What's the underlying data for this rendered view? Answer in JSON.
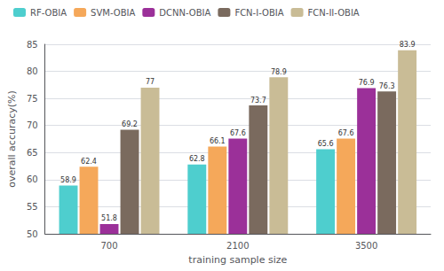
{
  "chart_data": {
    "type": "bar",
    "categories": [
      "700",
      "2100",
      "3500"
    ],
    "series": [
      {
        "name": "RF-OBIA",
        "color": "#4ECECE",
        "values": [
          58.9,
          62.8,
          65.6
        ]
      },
      {
        "name": "SVM-OBIA",
        "color": "#F5A85A",
        "values": [
          62.4,
          66.1,
          67.6
        ]
      },
      {
        "name": "DCNN-OBIA",
        "color": "#9B3099",
        "values": [
          51.8,
          67.6,
          76.9
        ]
      },
      {
        "name": "FCN-I-OBIA",
        "color": "#7A6A5E",
        "values": [
          69.2,
          73.7,
          76.3
        ]
      },
      {
        "name": "FCN-II-OBIA",
        "color": "#C9BC96",
        "values": [
          77,
          78.9,
          83.9
        ]
      }
    ],
    "xlabel": "training sample size",
    "ylabel": "overall accuracy(%)",
    "ylim": [
      50,
      85
    ],
    "yticks": [
      50,
      55,
      60,
      65,
      70,
      75,
      80,
      85
    ],
    "grid": true,
    "legend": "upper left",
    "data_labels": true
  }
}
